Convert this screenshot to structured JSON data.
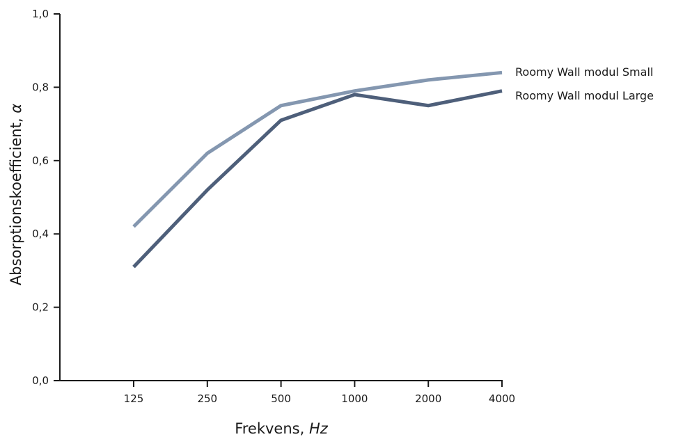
{
  "chart_data": {
    "type": "line",
    "xlabel": "Frekvens,",
    "xlabel_unit": "Hz",
    "ylabel": "Absorptionskoefficient,",
    "ylabel_symbol": "α",
    "categories": [
      "125",
      "250",
      "500",
      "1000",
      "2000",
      "4000"
    ],
    "ylim": [
      0,
      1
    ],
    "yticks": [
      "0,0",
      "0,2",
      "0,4",
      "0,6",
      "0,8",
      "1,0"
    ],
    "grid": false,
    "legend_placement": "right",
    "series": [
      {
        "name": "Roomy Wall modul Small",
        "color": "#8497b0",
        "values": [
          0.42,
          0.62,
          0.75,
          0.79,
          0.82,
          0.84
        ]
      },
      {
        "name": "Roomy Wall modul Large",
        "color": "#4e5f7a",
        "values": [
          0.31,
          0.52,
          0.71,
          0.78,
          0.75,
          0.79
        ]
      }
    ]
  }
}
